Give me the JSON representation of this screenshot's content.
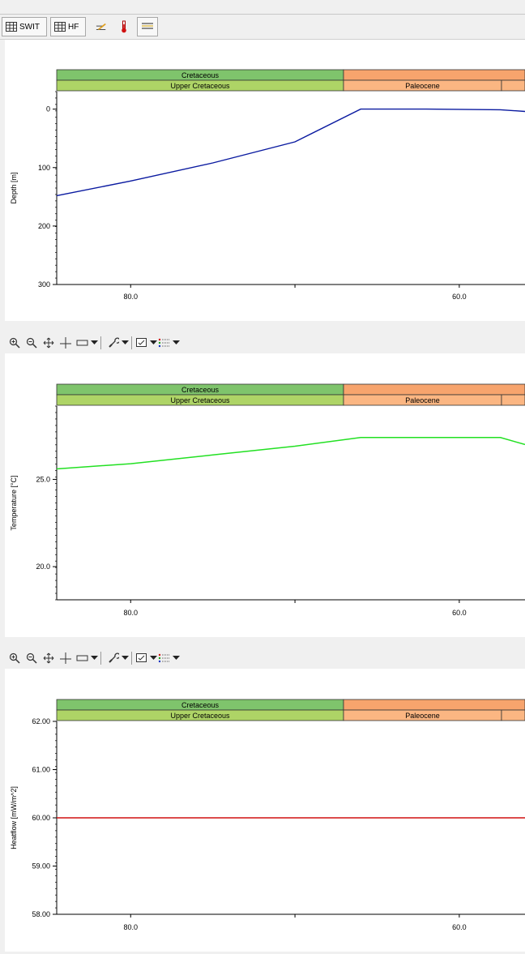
{
  "toolbar": {
    "buttons": [
      {
        "label": "SWIT",
        "icon": "table-icon"
      },
      {
        "label": "HF",
        "icon": "table-icon"
      },
      {
        "label": "",
        "icon": "pen-icon"
      },
      {
        "label": "",
        "icon": "thermometer-icon"
      },
      {
        "label": "",
        "icon": "layers-icon"
      }
    ]
  },
  "colors": {
    "cretaceous": "#7fc46c",
    "upper_cretaceous": "#aed466",
    "paleogene": "#f7a46d",
    "paleocene": "#fbb682",
    "depth_line": "#0a1aa0",
    "temperature_line": "#22e022",
    "heatflow_line": "#d01010"
  },
  "chart_data": [
    {
      "type": "line",
      "xlabel": "",
      "ylabel": "Depth [m]",
      "xlim": [
        84.5,
        56.0
      ],
      "ylim": [
        300,
        -30
      ],
      "x_ticks": [
        "80.0",
        "60.0"
      ],
      "y_ticks": [
        "0",
        "100",
        "200",
        "300"
      ],
      "bands": {
        "period": [
          "Cretaceous",
          ""
        ],
        "epoch": [
          "Upper Cretaceous",
          "Paleocene",
          ""
        ]
      },
      "series": [
        {
          "x": [
            84.5,
            80.0,
            75.0,
            70.0,
            66.0,
            62.0,
            57.5,
            56.0
          ],
          "values": [
            148,
            123,
            92,
            56,
            0,
            0,
            1,
            4
          ]
        }
      ]
    },
    {
      "type": "line",
      "xlabel": "",
      "ylabel": "Temperature [°C]",
      "xlim": [
        84.5,
        56.0
      ],
      "ylim": [
        18.1,
        29.2
      ],
      "x_ticks": [
        "80.0",
        "60.0"
      ],
      "y_ticks": [
        "20.0",
        "25.0"
      ],
      "bands": {
        "period": [
          "Cretaceous",
          ""
        ],
        "epoch": [
          "Upper Cretaceous",
          "Paleocene",
          ""
        ]
      },
      "series": [
        {
          "x": [
            84.5,
            80.0,
            75.0,
            70.0,
            66.0,
            62.0,
            57.5,
            56.0
          ],
          "values": [
            25.6,
            25.9,
            26.4,
            26.9,
            27.4,
            27.4,
            27.4,
            27.0
          ]
        }
      ]
    },
    {
      "type": "line",
      "xlabel": "",
      "ylabel": "Heatflow [mW/m^2]",
      "xlim": [
        84.5,
        56.0
      ],
      "ylim": [
        58.0,
        62.0
      ],
      "x_ticks": [
        "80.0",
        "60.0"
      ],
      "y_ticks": [
        "58.00",
        "59.00",
        "60.00",
        "61.00",
        "62.00"
      ],
      "bands": {
        "period": [
          "Cretaceous",
          ""
        ],
        "epoch": [
          "Upper Cretaceous",
          "Paleocene",
          ""
        ]
      },
      "series": [
        {
          "x": [
            84.5,
            56.0
          ],
          "values": [
            60.0,
            60.0
          ]
        }
      ]
    }
  ]
}
